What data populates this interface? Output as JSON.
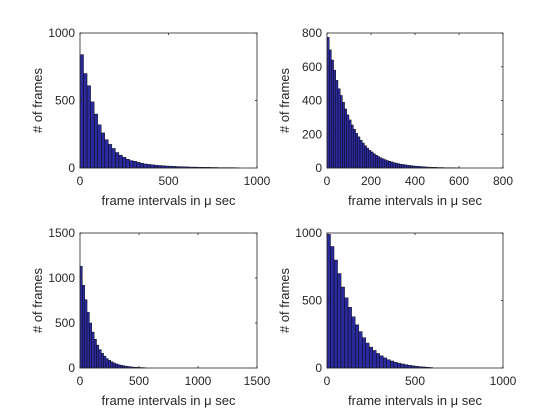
{
  "chart_data": [
    {
      "type": "bar",
      "subtype": "histogram",
      "xlabel": "frame intervals in μ sec",
      "ylabel": "# of frames",
      "xlim": [
        0,
        1000
      ],
      "ylim": [
        0,
        1000
      ],
      "xticks": [
        "0",
        "500",
        "1000"
      ],
      "yticks": [
        "0",
        "500",
        "1000"
      ],
      "bin_width": 20,
      "values": [
        840,
        700,
        610,
        490,
        400,
        320,
        260,
        210,
        175,
        145,
        115,
        95,
        80,
        65,
        55,
        50,
        42,
        36,
        30,
        27,
        24,
        21,
        19,
        17,
        15,
        14,
        12,
        11,
        10,
        9,
        8,
        7,
        7,
        6,
        6,
        5,
        5,
        4,
        4,
        3,
        3,
        3,
        3,
        3,
        2
      ],
      "grid": false,
      "bar_color": "#2a2a9a"
    },
    {
      "type": "bar",
      "subtype": "histogram",
      "xlabel": "frame intervals in μ sec",
      "ylabel": "# of frames",
      "xlim": [
        0,
        800
      ],
      "ylim": [
        0,
        800
      ],
      "xticks": [
        "0",
        "200",
        "400",
        "600",
        "800"
      ],
      "yticks": [
        "0",
        "200",
        "400",
        "600",
        "800"
      ],
      "bin_width": 10,
      "values": [
        775,
        700,
        640,
        580,
        520,
        470,
        430,
        390,
        350,
        315,
        285,
        255,
        230,
        205,
        185,
        165,
        148,
        132,
        118,
        105,
        95,
        85,
        76,
        68,
        61,
        55,
        49,
        44,
        40,
        36,
        32,
        29,
        26,
        23,
        21,
        19,
        17,
        15,
        14,
        12,
        11,
        10,
        9,
        8,
        7,
        6,
        5,
        5,
        4,
        4,
        3,
        3,
        3,
        2,
        2,
        2,
        2,
        2,
        1,
        1
      ],
      "grid": false,
      "bar_color": "#2a2a9a"
    },
    {
      "type": "bar",
      "subtype": "histogram",
      "xlabel": "frame intervals in μ sec",
      "ylabel": "# of frames",
      "xlim": [
        0,
        1500
      ],
      "ylim": [
        0,
        1500
      ],
      "xticks": [
        "0",
        "500",
        "1000",
        "1500"
      ],
      "yticks": [
        "0",
        "500",
        "1000",
        "1500"
      ],
      "bin_width": 20,
      "values": [
        1130,
        920,
        760,
        620,
        500,
        400,
        320,
        255,
        205,
        165,
        132,
        105,
        86,
        70,
        57,
        46,
        38,
        31,
        26,
        21,
        17,
        14,
        11,
        9,
        7,
        6,
        5,
        4
      ],
      "grid": false,
      "bar_color": "#2a2a9a"
    },
    {
      "type": "bar",
      "subtype": "histogram",
      "xlabel": "frame intervals in μ sec",
      "ylabel": "# of frames",
      "xlim": [
        0,
        1000
      ],
      "ylim": [
        0,
        1000
      ],
      "xticks": [
        "0",
        "500",
        "1000"
      ],
      "yticks": [
        "0",
        "500",
        "1000"
      ],
      "bin_width": 20,
      "values": [
        990,
        900,
        800,
        700,
        600,
        520,
        450,
        380,
        320,
        270,
        225,
        185,
        155,
        130,
        108,
        90,
        75,
        62,
        52,
        43,
        36,
        30,
        25,
        20,
        16,
        13,
        10,
        8,
        6,
        4
      ],
      "grid": false,
      "bar_color": "#2a2a9a"
    }
  ]
}
